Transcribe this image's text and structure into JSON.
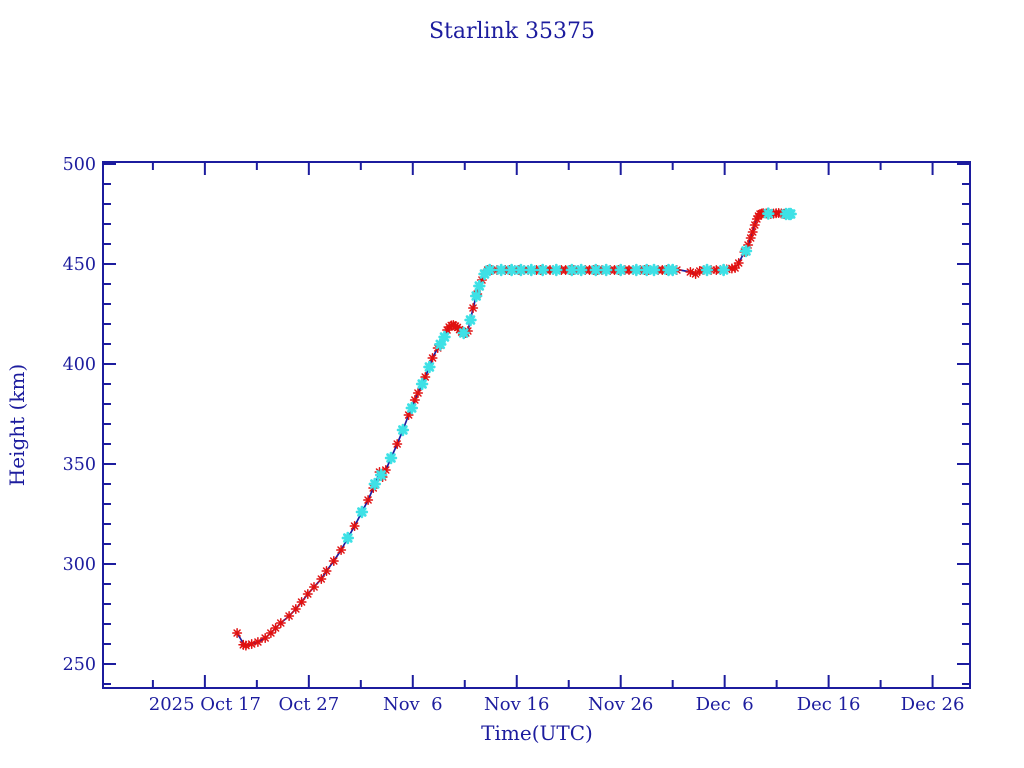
{
  "figure": {
    "background": "#ffffff",
    "axis_color": "#1c1c9e"
  },
  "chart_data": {
    "type": "line",
    "title": "Starlink 35375",
    "xlabel": "Time(UTC)",
    "ylabel": "Height (km)",
    "x_unit": "days since 2025-10-17 00:00 UTC",
    "xlim": [
      -9.8,
      73.6
    ],
    "ylim": [
      238,
      501
    ],
    "grid": false,
    "legend_position": "none",
    "line_color": "#1c1c9e",
    "marker_red_color": "#e01111",
    "marker_cyan_color": "#3ee1e6",
    "x_ticks": {
      "values": [
        0,
        10,
        20,
        30,
        40,
        50,
        60,
        70
      ],
      "labels": [
        "2025 Oct 17",
        "Oct 27",
        "Nov  6",
        "Nov 16",
        "Nov 26",
        "Dec  6",
        "Dec 16",
        "Dec 26"
      ]
    },
    "x_minor_ticks": [
      -5,
      5,
      15,
      25,
      35,
      45,
      55,
      65
    ],
    "y_ticks": {
      "values": [
        250,
        300,
        350,
        400,
        450,
        500
      ],
      "labels": [
        "250",
        "300",
        "350",
        "400",
        "450",
        "500"
      ]
    },
    "y_minor_ticks": [
      240,
      260,
      270,
      280,
      290,
      310,
      320,
      330,
      340,
      360,
      370,
      380,
      390,
      410,
      420,
      430,
      440,
      460,
      470,
      480,
      490
    ],
    "line": [
      [
        3.1,
        265.5
      ],
      [
        3.5,
        262
      ],
      [
        3.85,
        259.2
      ],
      [
        4.2,
        259.6
      ],
      [
        4.5,
        260
      ],
      [
        5.1,
        261
      ],
      [
        5.8,
        263
      ],
      [
        6.35,
        265.5
      ],
      [
        6.8,
        268
      ],
      [
        7.3,
        270.5
      ],
      [
        8.1,
        274
      ],
      [
        8.75,
        277.5
      ],
      [
        9.3,
        281
      ],
      [
        9.9,
        285
      ],
      [
        10.5,
        288.5
      ],
      [
        11.2,
        292.5
      ],
      [
        11.7,
        296.5
      ],
      [
        12.4,
        301.5
      ],
      [
        13.1,
        307
      ],
      [
        13.75,
        313
      ],
      [
        14.4,
        319
      ],
      [
        15.1,
        326
      ],
      [
        15.7,
        332
      ],
      [
        16.2,
        338
      ],
      [
        16.65,
        344
      ],
      [
        16.8,
        346
      ],
      [
        17.1,
        343.5
      ],
      [
        17.4,
        347
      ],
      [
        17.9,
        353
      ],
      [
        18.5,
        360
      ],
      [
        19.05,
        367
      ],
      [
        19.6,
        374.5
      ],
      [
        20.2,
        382
      ],
      [
        20.8,
        389
      ],
      [
        21.4,
        396
      ],
      [
        21.9,
        403
      ],
      [
        22.4,
        408
      ],
      [
        22.9,
        412
      ],
      [
        23.3,
        417
      ],
      [
        23.6,
        419
      ],
      [
        24,
        419.5
      ],
      [
        24.35,
        418
      ],
      [
        24.7,
        416
      ],
      [
        25,
        415
      ],
      [
        25.3,
        416.5
      ],
      [
        25.5,
        421
      ],
      [
        25.8,
        428
      ],
      [
        26.1,
        434
      ],
      [
        26.35,
        438.5
      ],
      [
        26.65,
        442
      ],
      [
        26.95,
        445.5
      ],
      [
        27.2,
        447
      ],
      [
        30,
        447
      ],
      [
        33,
        447
      ],
      [
        36,
        447
      ],
      [
        39,
        447
      ],
      [
        42,
        447
      ],
      [
        45,
        447
      ],
      [
        45.7,
        447
      ],
      [
        46.7,
        446
      ],
      [
        47.2,
        445
      ],
      [
        47.6,
        446.5
      ],
      [
        48.6,
        447
      ],
      [
        49.6,
        447
      ],
      [
        50.5,
        447.5
      ],
      [
        51,
        448
      ],
      [
        51.3,
        450
      ],
      [
        51.6,
        453
      ],
      [
        51.9,
        456
      ],
      [
        52.2,
        459
      ],
      [
        52.45,
        462
      ],
      [
        52.65,
        465
      ],
      [
        52.8,
        468.5
      ],
      [
        53,
        471.5
      ],
      [
        53.2,
        474
      ],
      [
        53.4,
        475
      ],
      [
        53.9,
        475.5
      ],
      [
        54.4,
        475
      ],
      [
        54.9,
        475.5
      ],
      [
        55.3,
        475.5
      ],
      [
        55.8,
        475
      ],
      [
        56.3,
        475
      ]
    ],
    "markers_red": [
      [
        3.1,
        265.5
      ],
      [
        3.7,
        259.6
      ],
      [
        3.95,
        259.2
      ],
      [
        4.5,
        260
      ],
      [
        5.1,
        261
      ],
      [
        5.8,
        263
      ],
      [
        6.35,
        265.5
      ],
      [
        6.8,
        268
      ],
      [
        7.3,
        270.5
      ],
      [
        8.1,
        274
      ],
      [
        8.75,
        277.5
      ],
      [
        9.3,
        281
      ],
      [
        9.9,
        285
      ],
      [
        10.5,
        288.5
      ],
      [
        11.2,
        292.5
      ],
      [
        11.7,
        296.5
      ],
      [
        12.4,
        301.5
      ],
      [
        13.1,
        307
      ],
      [
        14.4,
        319
      ],
      [
        15.7,
        332
      ],
      [
        16.2,
        338
      ],
      [
        16.8,
        346
      ],
      [
        17.1,
        343.5
      ],
      [
        17.4,
        347
      ],
      [
        18.5,
        360
      ],
      [
        19.6,
        374.5
      ],
      [
        20.2,
        382
      ],
      [
        20.5,
        385.5
      ],
      [
        21.2,
        393.5
      ],
      [
        21.9,
        403
      ],
      [
        22.4,
        408
      ],
      [
        23.3,
        417
      ],
      [
        23.5,
        418.5
      ],
      [
        23.7,
        419.3
      ],
      [
        23.9,
        419.5
      ],
      [
        24.1,
        419
      ],
      [
        24.3,
        418.3
      ],
      [
        24.5,
        417.2
      ],
      [
        24.7,
        416
      ],
      [
        25.1,
        415.5
      ],
      [
        25.3,
        416.5
      ],
      [
        25.8,
        428
      ],
      [
        26.2,
        435
      ],
      [
        26.65,
        442
      ],
      [
        27.2,
        447
      ],
      [
        27.6,
        447
      ],
      [
        28.1,
        447
      ],
      [
        28.9,
        447
      ],
      [
        29.3,
        447
      ],
      [
        29.8,
        447
      ],
      [
        30.2,
        447
      ],
      [
        30.7,
        447
      ],
      [
        31.1,
        447
      ],
      [
        31.9,
        447
      ],
      [
        32.3,
        447
      ],
      [
        32.8,
        447
      ],
      [
        33.2,
        447
      ],
      [
        33.5,
        447
      ],
      [
        34.3,
        447
      ],
      [
        34.7,
        447
      ],
      [
        35.1,
        447
      ],
      [
        35.5,
        447
      ],
      [
        35.9,
        447
      ],
      [
        36.6,
        447
      ],
      [
        37,
        447
      ],
      [
        37.4,
        447
      ],
      [
        37.8,
        447
      ],
      [
        38.2,
        447
      ],
      [
        39,
        447
      ],
      [
        39.4,
        447
      ],
      [
        39.8,
        447
      ],
      [
        40.4,
        447
      ],
      [
        40.8,
        447
      ],
      [
        41.2,
        447
      ],
      [
        41.9,
        447
      ],
      [
        42.3,
        447
      ],
      [
        42.7,
        447
      ],
      [
        43.6,
        447
      ],
      [
        44,
        447
      ],
      [
        44.4,
        447
      ],
      [
        44.7,
        447
      ],
      [
        45.4,
        447
      ],
      [
        46.7,
        446
      ],
      [
        47.2,
        445
      ],
      [
        47.6,
        446.5
      ],
      [
        48,
        447
      ],
      [
        48.7,
        447
      ],
      [
        49.2,
        447
      ],
      [
        49.6,
        447
      ],
      [
        50.2,
        447.3
      ],
      [
        50.7,
        447.8
      ],
      [
        51,
        448
      ],
      [
        51.35,
        450.5
      ],
      [
        51.9,
        456
      ],
      [
        52.25,
        459.5
      ],
      [
        52.5,
        463
      ],
      [
        52.7,
        466
      ],
      [
        52.9,
        469.5
      ],
      [
        53.1,
        472.5
      ],
      [
        53.25,
        474
      ],
      [
        53.4,
        475
      ],
      [
        53.55,
        475.2
      ],
      [
        53.7,
        475.4
      ],
      [
        54,
        475.3
      ],
      [
        54.45,
        475
      ],
      [
        54.7,
        475.2
      ],
      [
        54.95,
        475.4
      ],
      [
        55.2,
        475.5
      ],
      [
        55.45,
        475.3
      ],
      [
        55.7,
        475.1
      ]
    ],
    "markers_cyan": [
      [
        13.75,
        313
      ],
      [
        15.1,
        326
      ],
      [
        16.35,
        340
      ],
      [
        16.95,
        344.5
      ],
      [
        17.9,
        353
      ],
      [
        19.05,
        367
      ],
      [
        19.9,
        378
      ],
      [
        20.9,
        390
      ],
      [
        21.6,
        398.5
      ],
      [
        22.65,
        409.8
      ],
      [
        23.05,
        413.5
      ],
      [
        24.9,
        415.5
      ],
      [
        25.55,
        422
      ],
      [
        26.1,
        434
      ],
      [
        26.4,
        439
      ],
      [
        26.9,
        445
      ],
      [
        27.4,
        447
      ],
      [
        28.5,
        447
      ],
      [
        29.5,
        447
      ],
      [
        30.4,
        447
      ],
      [
        31.4,
        447
      ],
      [
        32.5,
        447
      ],
      [
        33.8,
        447
      ],
      [
        35.3,
        447
      ],
      [
        36.2,
        447
      ],
      [
        37.6,
        447
      ],
      [
        38.6,
        447
      ],
      [
        40,
        447
      ],
      [
        41.5,
        447
      ],
      [
        42.5,
        447
      ],
      [
        43.2,
        447
      ],
      [
        44.6,
        447
      ],
      [
        45,
        447
      ],
      [
        48.3,
        447
      ],
      [
        49.9,
        447
      ],
      [
        52.05,
        456.5
      ],
      [
        54.2,
        475.2
      ],
      [
        55.9,
        475
      ],
      [
        56.2,
        475
      ],
      [
        56.35,
        475
      ]
    ]
  }
}
